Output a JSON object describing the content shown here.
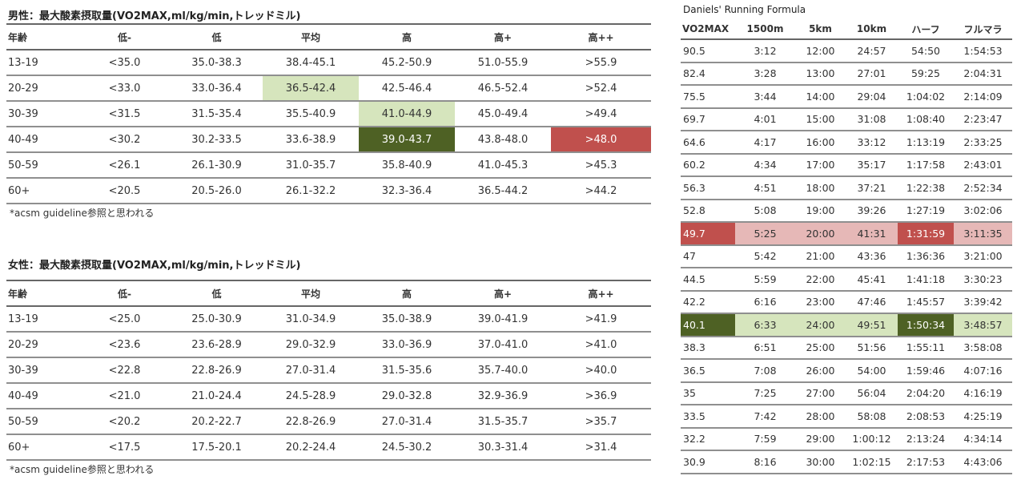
{
  "male": {
    "title": "男性：最大酸素摂取量(VO2MAX,ml/kg/min,トレッドミル)",
    "headers": [
      "年齢",
      "低-",
      "低",
      "平均",
      "高",
      "高+",
      "高++"
    ],
    "rows": [
      [
        "13-19",
        "<35.0",
        "35.0-38.3",
        "38.4-45.1",
        "45.2-50.9",
        "51.0-55.9",
        ">55.9"
      ],
      [
        "20-29",
        "<33.0",
        "33.0-36.4",
        "36.5-42.4",
        "42.5-46.4",
        "46.5-52.4",
        ">52.4"
      ],
      [
        "30-39",
        "<31.5",
        "31.5-35.4",
        "35.5-40.9",
        "41.0-44.9",
        "45.0-49.4",
        ">49.4"
      ],
      [
        "40-49",
        "<30.2",
        "30.2-33.5",
        "33.6-38.9",
        "39.0-43.7",
        "43.8-48.0",
        ">48.0"
      ],
      [
        "50-59",
        "<26.1",
        "26.1-30.9",
        "31.0-35.7",
        "35.8-40.9",
        "41.0-45.3",
        ">45.3"
      ],
      [
        "60+",
        "<20.5",
        "20.5-26.0",
        "26.1-32.2",
        "32.3-36.4",
        "36.5-44.2",
        ">44.2"
      ]
    ],
    "note": "*acsm guideline参照と思われる"
  },
  "female": {
    "title": "女性：最大酸素摂取量(VO2MAX,ml/kg/min,トレッドミル)",
    "headers": [
      "年齢",
      "低-",
      "低",
      "平均",
      "高",
      "高+",
      "高++"
    ],
    "rows": [
      [
        "13-19",
        "<25.0",
        "25.0-30.9",
        "31.0-34.9",
        "35.0-38.9",
        "39.0-41.9",
        ">41.9"
      ],
      [
        "20-29",
        "<23.6",
        "23.6-28.9",
        "29.0-32.9",
        "33.0-36.9",
        "37.0-41.0",
        ">41.0"
      ],
      [
        "30-39",
        "<22.8",
        "22.8-26.9",
        "27.0-31.4",
        "31.5-35.6",
        "35.7-40.0",
        ">40.0"
      ],
      [
        "40-49",
        "<21.0",
        "21.0-24.4",
        "24.5-28.9",
        "29.0-32.8",
        "32.9-36.9",
        ">36.9"
      ],
      [
        "50-59",
        "<20.2",
        "20.2-22.7",
        "22.8-26.9",
        "27.0-31.4",
        "31.5-35.7",
        ">35.7"
      ],
      [
        "60+",
        "<17.5",
        "17.5-20.1",
        "20.2-24.4",
        "24.5-30.2",
        "30.3-31.4",
        ">31.4"
      ]
    ],
    "note": "*acsm guideline参照と思われる"
  },
  "daniels": {
    "title": "Daniels' Running Formula",
    "headers": [
      "VO2MAX",
      "1500m",
      "5km",
      "10km",
      "ハーフ",
      "フルマラ"
    ],
    "rows": [
      [
        "90.5",
        "3:12",
        "12:00",
        "24:57",
        "54:50",
        "1:54:53"
      ],
      [
        "82.4",
        "3:28",
        "13:00",
        "27:01",
        "59:25",
        "2:04:31"
      ],
      [
        "75.5",
        "3:44",
        "14:00",
        "29:04",
        "1:04:02",
        "2:14:09"
      ],
      [
        "69.7",
        "4:01",
        "15:00",
        "31:08",
        "1:08:40",
        "2:23:47"
      ],
      [
        "64.6",
        "4:17",
        "16:00",
        "33:12",
        "1:13:19",
        "2:33:25"
      ],
      [
        "60.2",
        "4:34",
        "17:00",
        "35:17",
        "1:17:58",
        "2:43:01"
      ],
      [
        "56.3",
        "4:51",
        "18:00",
        "37:21",
        "1:22:38",
        "2:52:34"
      ],
      [
        "52.8",
        "5:08",
        "19:00",
        "39:26",
        "1:27:19",
        "3:02:06"
      ],
      [
        "49.7",
        "5:25",
        "20:00",
        "41:31",
        "1:31:59",
        "3:11:35"
      ],
      [
        "47",
        "5:42",
        "21:00",
        "43:36",
        "1:36:36",
        "3:21:00"
      ],
      [
        "44.5",
        "5:59",
        "22:00",
        "45:41",
        "1:41:18",
        "3:30:23"
      ],
      [
        "42.2",
        "6:16",
        "23:00",
        "47:46",
        "1:45:57",
        "3:39:42"
      ],
      [
        "40.1",
        "6:33",
        "24:00",
        "49:51",
        "1:50:34",
        "3:48:57"
      ],
      [
        "38.3",
        "6:51",
        "25:00",
        "51:56",
        "1:55:11",
        "3:58:08"
      ],
      [
        "36.5",
        "7:08",
        "26:00",
        "54:00",
        "1:59:46",
        "4:07:16"
      ],
      [
        "35",
        "7:25",
        "27:00",
        "56:04",
        "2:04:20",
        "4:16:19"
      ],
      [
        "33.5",
        "7:42",
        "28:00",
        "58:08",
        "2:08:53",
        "4:25:19"
      ],
      [
        "32.2",
        "7:59",
        "29:00",
        "1:00:12",
        "2:13:24",
        "4:34:14"
      ],
      [
        "30.9",
        "8:16",
        "30:00",
        "1:02:15",
        "2:17:53",
        "4:43:06"
      ]
    ]
  },
  "highlights": {
    "male": [
      {
        "row": 1,
        "col": 3,
        "style": "light"
      },
      {
        "row": 2,
        "col": 4,
        "style": "light"
      },
      {
        "row": 3,
        "col": 4,
        "style": "dark"
      },
      {
        "row": 3,
        "col": 6,
        "style": "red"
      }
    ],
    "daniels": [
      {
        "row": 8,
        "col": 0,
        "style": "red"
      },
      {
        "row": 8,
        "col": 1,
        "style": "pink"
      },
      {
        "row": 8,
        "col": 2,
        "style": "pink"
      },
      {
        "row": 8,
        "col": 3,
        "style": "pink"
      },
      {
        "row": 8,
        "col": 4,
        "style": "red"
      },
      {
        "row": 8,
        "col": 5,
        "style": "pink"
      },
      {
        "row": 12,
        "col": 0,
        "style": "dark"
      },
      {
        "row": 12,
        "col": 1,
        "style": "light"
      },
      {
        "row": 12,
        "col": 2,
        "style": "light"
      },
      {
        "row": 12,
        "col": 3,
        "style": "light"
      },
      {
        "row": 12,
        "col": 4,
        "style": "dark"
      },
      {
        "row": 12,
        "col": 5,
        "style": "light"
      }
    ]
  },
  "colors": {
    "light": "#d6e5bd",
    "dark": "#4e6124",
    "red": "#c0504d",
    "pink": "#e6b8b7"
  }
}
